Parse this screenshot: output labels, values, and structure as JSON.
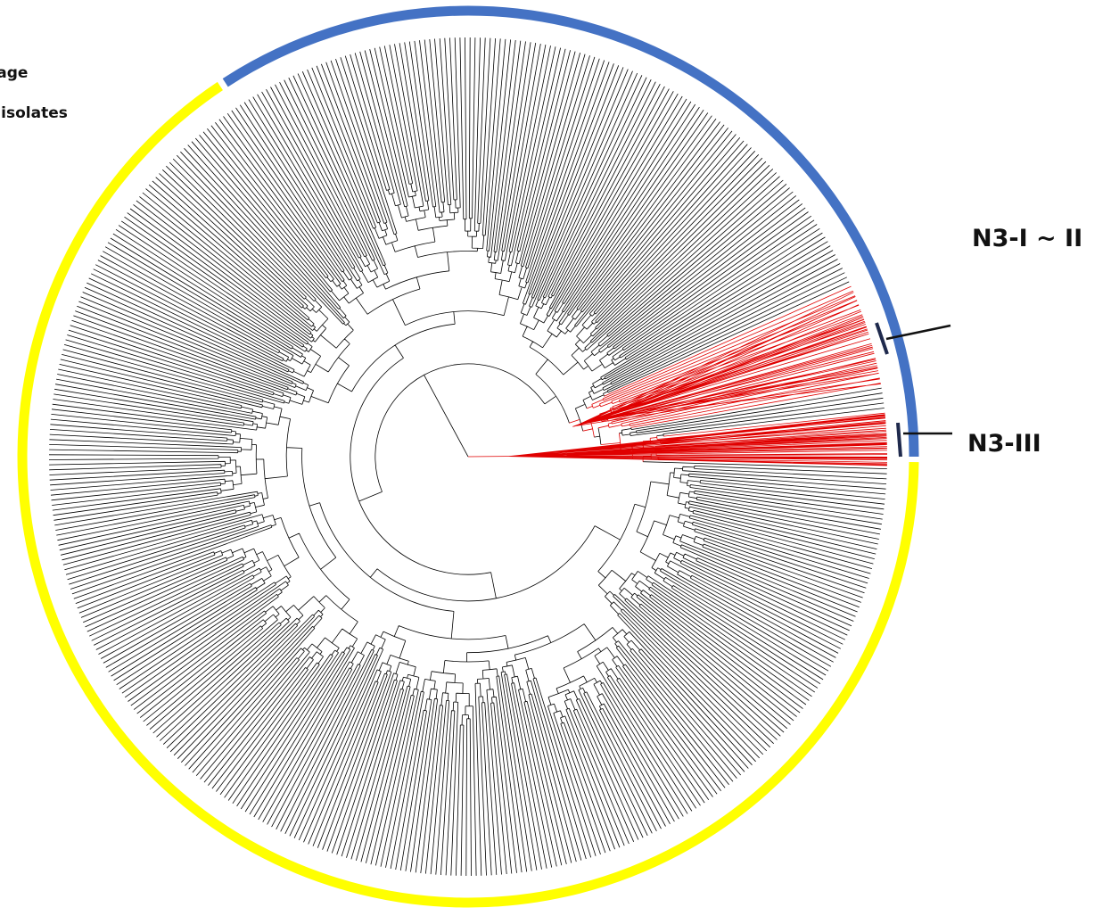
{
  "legend": {
    "line1": "Lineage",
    "line2": "# of isolates"
  },
  "clades": [
    {
      "id": "n3-i-ii",
      "label": "N3-I ~ II"
    },
    {
      "id": "n3-iii",
      "label": "N3-III"
    }
  ],
  "colors": {
    "ring_blue": "#4472C4",
    "ring_yellow": "#FFFF00",
    "branch_black": "#000000",
    "branch_red": "#E00000",
    "marker_navy": "#1F2A4D"
  }
}
